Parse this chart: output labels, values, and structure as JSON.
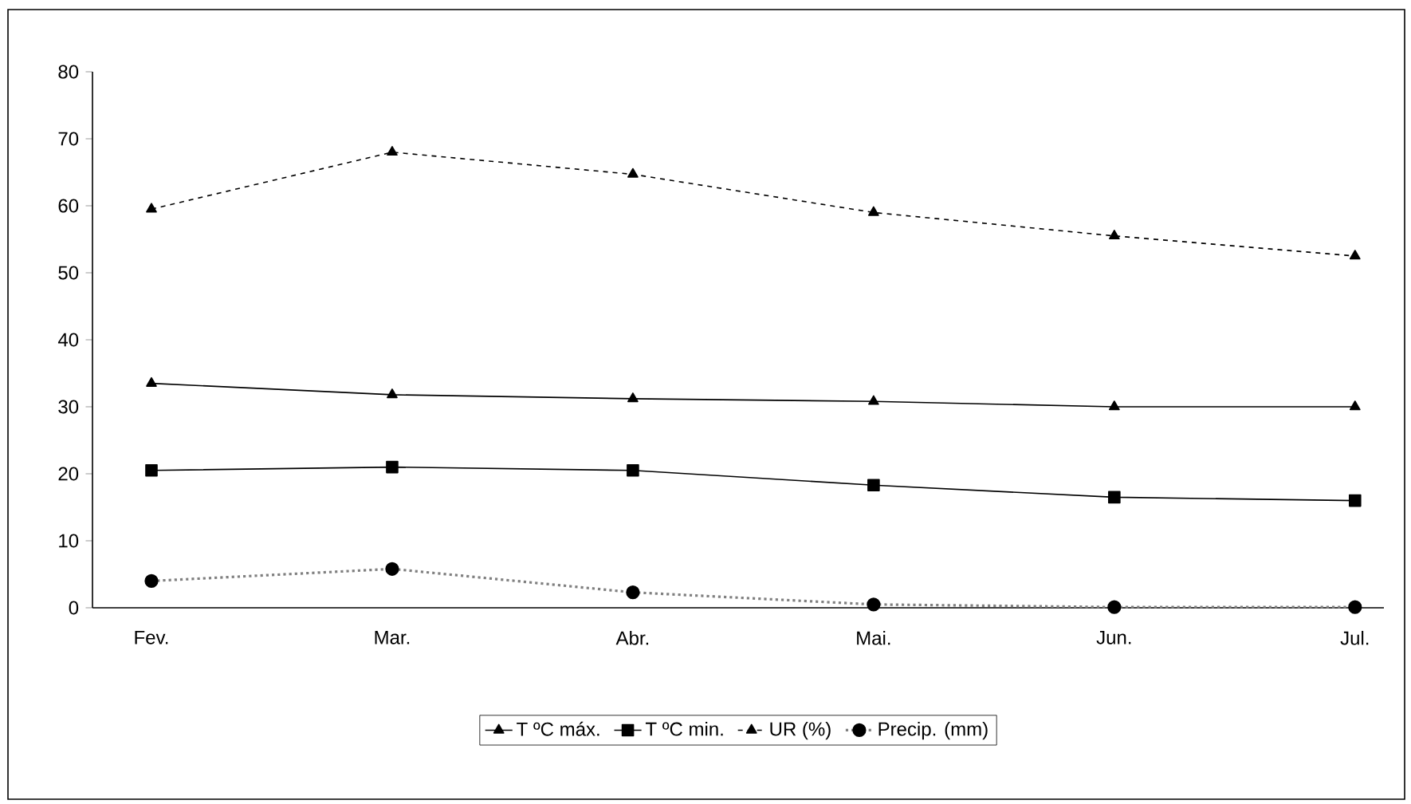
{
  "chart_data": {
    "type": "line",
    "categories": [
      "Fev.",
      "Mar.",
      "Abr.",
      "Mai.",
      "Jun.",
      "Jul."
    ],
    "series": [
      {
        "name": "T ºC máx.",
        "color": "#000000",
        "marker": "triangle",
        "line_style": "solid",
        "values": [
          33.5,
          31.8,
          31.2,
          30.8,
          30,
          30
        ]
      },
      {
        "name": "T ºC min.",
        "color": "#000000",
        "marker": "square",
        "line_style": "solid",
        "values": [
          20.5,
          21,
          20.5,
          18.3,
          16.5,
          16
        ]
      },
      {
        "name": "UR (%)",
        "color": "#000000",
        "marker": "triangle",
        "line_style": "dashed",
        "values": [
          59.5,
          68,
          64.7,
          59,
          55.5,
          52.5
        ]
      },
      {
        "name": "Precip. (mm)",
        "color": "#000000",
        "marker": "circle",
        "line_style": "dotted",
        "values": [
          4,
          5.8,
          2.3,
          0.5,
          0.1,
          0.1
        ]
      }
    ],
    "ylim": [
      0,
      80
    ],
    "yticks": [
      0,
      10,
      20,
      30,
      40,
      50,
      60,
      70,
      80
    ],
    "grid": false,
    "legend": "bottom"
  }
}
